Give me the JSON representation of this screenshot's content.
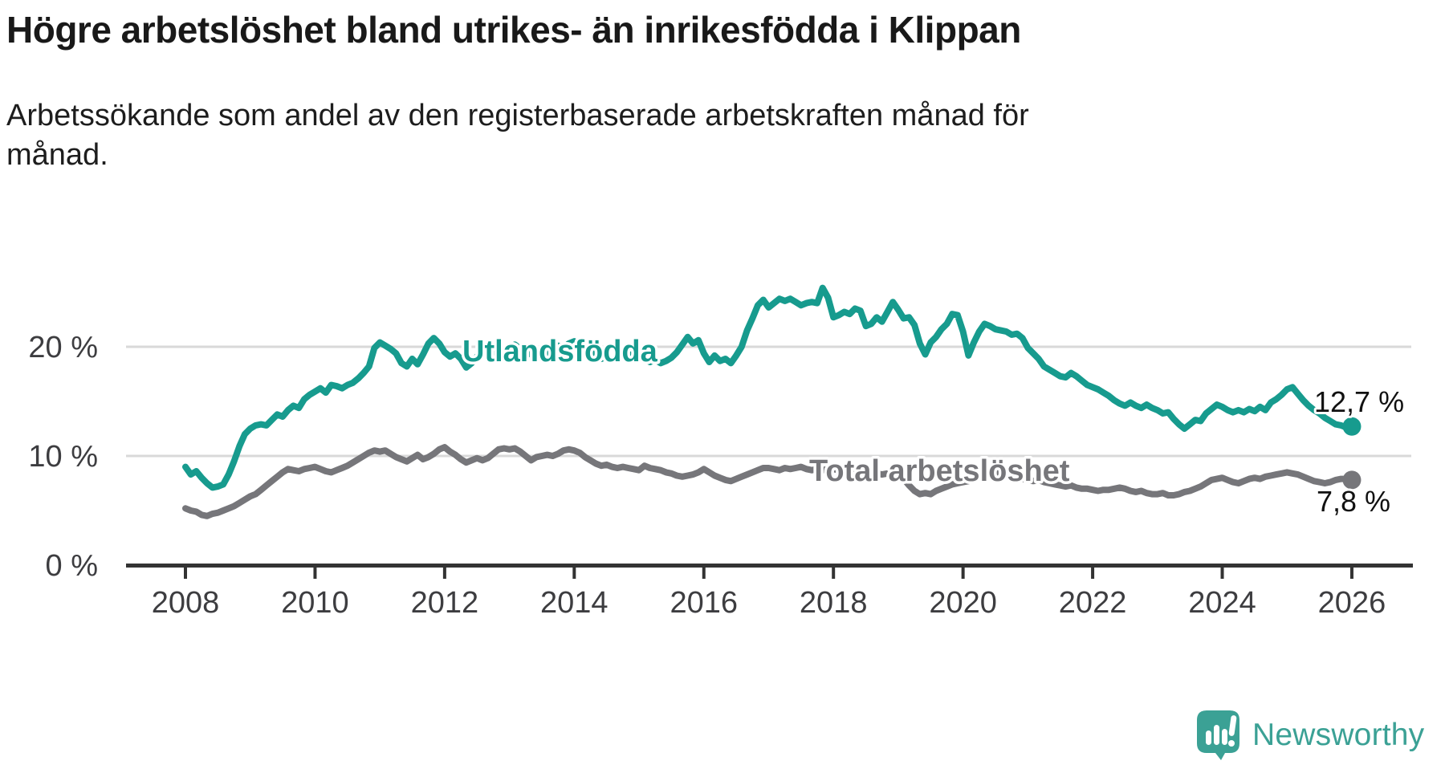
{
  "title": "Högre arbetslöshet bland utrikes- än inrikesfödda i Klippan",
  "subtitle": {
    "line1": "Arbetssökande som andel av den registerbaserade arbetskraften månad för",
    "line2": "månad."
  },
  "brand": {
    "name": "Newsworthy"
  },
  "colors": {
    "foreign_born": "#179b8e",
    "total": "#76767a",
    "axis": "#333333",
    "tick_label": "#3d3d40",
    "gridline": "#d9d9d9",
    "annotation": "#111111",
    "logo": "#3ba195"
  },
  "chart_data": {
    "type": "line",
    "title": "Högre arbetslöshet bland utrikes- än inrikesfödda i Klippan",
    "subtitle": "Arbetssökande som andel av den registerbaserade arbetskraften månad för månad.",
    "frequency": "monthly",
    "x_start_year": 2008,
    "x_end_year": 2026,
    "xlim": [
      2008,
      2026
    ],
    "ylim": [
      0,
      26.5
    ],
    "grid": "horizontal",
    "x_ticks": [
      "2008",
      "2010",
      "2012",
      "2014",
      "2016",
      "2018",
      "2020",
      "2022",
      "2024",
      "2026"
    ],
    "y_ticks": [
      {
        "label": "0 %",
        "value": 0
      },
      {
        "label": "10 %",
        "value": 10
      },
      {
        "label": "20 %",
        "value": 20
      }
    ],
    "series": [
      {
        "name": "Utlandsfödda",
        "color": "#179b8e",
        "end_label": "12,7 %",
        "last_value": 12.7,
        "values": [
          9.0,
          8.3,
          8.6,
          8.0,
          7.5,
          7.1,
          7.2,
          7.4,
          8.3,
          9.5,
          10.9,
          12.0,
          12.5,
          12.8,
          12.9,
          12.8,
          13.3,
          13.8,
          13.6,
          14.2,
          14.6,
          14.4,
          15.2,
          15.6,
          15.9,
          16.2,
          15.8,
          16.5,
          16.4,
          16.2,
          16.5,
          16.7,
          17.1,
          17.6,
          18.2,
          19.9,
          20.4,
          20.1,
          19.8,
          19.4,
          18.5,
          18.2,
          18.9,
          18.4,
          19.3,
          20.3,
          20.8,
          20.3,
          19.5,
          19.1,
          19.4,
          18.9,
          18.1,
          18.5,
          19.1,
          19.4,
          19.7,
          19.5,
          19.7,
          19.6,
          19.9,
          20.2,
          19.8,
          19.6,
          19.3,
          19.0,
          19.2,
          19.5,
          19.8,
          20.1,
          19.9,
          20.3,
          20.5,
          20.2,
          19.9,
          19.6,
          19.2,
          18.9,
          19.1,
          18.8,
          19.0,
          19.3,
          19.1,
          19.4,
          19.2,
          18.9,
          18.6,
          18.8,
          18.5,
          18.7,
          19.0,
          19.5,
          20.2,
          20.9,
          20.3,
          20.6,
          19.4,
          18.6,
          19.2,
          18.7,
          18.9,
          18.5,
          19.2,
          20.0,
          21.5,
          22.6,
          23.8,
          24.3,
          23.6,
          24.0,
          24.4,
          24.2,
          24.4,
          24.1,
          23.8,
          24.0,
          24.1,
          24.0,
          25.4,
          24.5,
          22.7,
          22.9,
          23.2,
          23.0,
          23.5,
          23.3,
          21.9,
          22.1,
          22.7,
          22.3,
          23.2,
          24.1,
          23.4,
          22.6,
          22.7,
          22.0,
          20.3,
          19.3,
          20.4,
          20.9,
          21.6,
          22.1,
          23.0,
          22.9,
          21.4,
          19.2,
          20.4,
          21.4,
          22.1,
          21.9,
          21.6,
          21.5,
          21.4,
          21.1,
          21.2,
          20.8,
          19.9,
          19.4,
          18.9,
          18.2,
          17.9,
          17.6,
          17.3,
          17.2,
          17.6,
          17.3,
          16.9,
          16.5,
          16.3,
          16.1,
          15.8,
          15.5,
          15.1,
          14.8,
          14.6,
          14.9,
          14.6,
          14.4,
          14.7,
          14.4,
          14.2,
          13.9,
          14.0,
          13.4,
          12.9,
          12.5,
          12.9,
          13.3,
          13.2,
          13.9,
          14.3,
          14.7,
          14.5,
          14.2,
          14.0,
          14.2,
          14.0,
          14.3,
          14.1,
          14.5,
          14.2,
          14.9,
          15.2,
          15.6,
          16.1,
          16.3,
          15.7,
          15.1,
          14.6,
          14.2,
          13.9,
          13.5,
          13.2,
          12.9,
          12.8,
          12.6,
          12.7
        ]
      },
      {
        "name": "Total arbetslöshet",
        "color": "#76767a",
        "end_label": "7,8 %",
        "last_value": 7.8,
        "values": [
          5.2,
          5.0,
          4.9,
          4.6,
          4.5,
          4.7,
          4.8,
          5.0,
          5.2,
          5.4,
          5.7,
          6.0,
          6.3,
          6.5,
          6.9,
          7.3,
          7.7,
          8.1,
          8.5,
          8.8,
          8.7,
          8.6,
          8.8,
          8.9,
          9.0,
          8.8,
          8.6,
          8.5,
          8.7,
          8.9,
          9.1,
          9.4,
          9.7,
          10.0,
          10.3,
          10.5,
          10.4,
          10.5,
          10.2,
          9.9,
          9.7,
          9.5,
          9.8,
          10.1,
          9.7,
          9.9,
          10.2,
          10.6,
          10.8,
          10.4,
          10.1,
          9.7,
          9.4,
          9.6,
          9.8,
          9.6,
          9.8,
          10.2,
          10.6,
          10.7,
          10.6,
          10.7,
          10.4,
          10.0,
          9.6,
          9.9,
          10.0,
          10.1,
          10.0,
          10.2,
          10.5,
          10.6,
          10.5,
          10.3,
          9.9,
          9.6,
          9.3,
          9.1,
          9.2,
          9.0,
          8.9,
          9.0,
          8.9,
          8.8,
          8.7,
          9.1,
          8.9,
          8.8,
          8.7,
          8.5,
          8.4,
          8.2,
          8.1,
          8.2,
          8.3,
          8.5,
          8.8,
          8.5,
          8.2,
          8.0,
          7.8,
          7.7,
          7.9,
          8.1,
          8.3,
          8.5,
          8.7,
          8.9,
          8.9,
          8.8,
          8.7,
          8.9,
          8.8,
          8.9,
          9.0,
          8.8,
          8.7,
          8.8,
          8.7,
          8.8,
          8.8,
          8.7,
          8.6,
          8.5,
          8.6,
          8.5,
          8.4,
          8.3,
          8.4,
          8.3,
          8.4,
          8.5,
          8.3,
          7.9,
          7.3,
          6.8,
          6.5,
          6.6,
          6.5,
          6.8,
          7.0,
          7.2,
          7.4,
          7.5,
          7.6,
          7.7,
          7.9,
          8.3,
          8.6,
          8.7,
          8.5,
          8.4,
          8.3,
          8.1,
          8.0,
          7.9,
          7.8,
          7.7,
          7.8,
          7.6,
          7.5,
          7.4,
          7.3,
          7.2,
          7.3,
          7.1,
          7.0,
          7.0,
          6.9,
          6.8,
          6.9,
          6.9,
          7.0,
          7.1,
          7.0,
          6.8,
          6.7,
          6.8,
          6.6,
          6.5,
          6.5,
          6.6,
          6.4,
          6.4,
          6.5,
          6.7,
          6.8,
          7.0,
          7.2,
          7.5,
          7.8,
          7.9,
          8.0,
          7.8,
          7.6,
          7.5,
          7.7,
          7.9,
          8.0,
          7.9,
          8.1,
          8.2,
          8.3,
          8.4,
          8.5,
          8.4,
          8.3,
          8.1,
          7.9,
          7.7,
          7.6,
          7.5,
          7.6,
          7.8,
          7.9,
          7.9,
          7.8
        ]
      }
    ]
  }
}
